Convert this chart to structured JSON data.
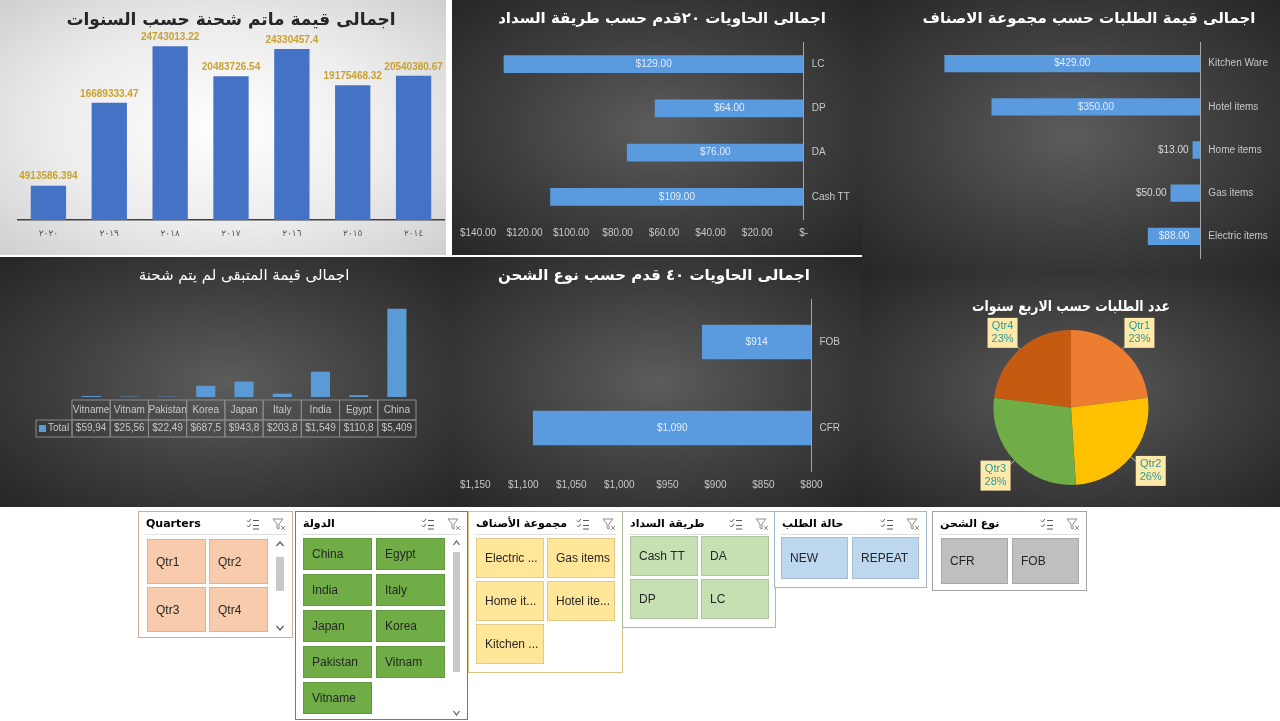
{
  "chart_data": [
    {
      "type": "bar",
      "title": "اجمالى قيمة ماتم شحنة حسب السنوات",
      "categories": [
        "٢٠٢٠",
        "٢٠١٩",
        "٢٠١٨",
        "٢٠١٧",
        "٢٠١٦",
        "٢٠١٥",
        "٢٠١٤"
      ],
      "values": [
        4913586.394,
        16689333.47,
        24743013.22,
        20483726.54,
        24330457.4,
        19175468.32,
        20540380.67
      ],
      "color": "#4472c4",
      "data_labels": true,
      "tick_labels": "x"
    },
    {
      "type": "bar",
      "orientation": "horizontal",
      "title": "اجمالى الحاويات ٢٠قدم حسب طريقة السداد",
      "categories": [
        "LC",
        "DP",
        "DA",
        "Cash TT"
      ],
      "values": [
        129,
        64,
        76,
        109
      ],
      "value_labels": [
        "$129.00",
        "$64.00",
        "$76.00",
        "$109.00"
      ],
      "color": "#5a9be0",
      "xlim": [
        140,
        0
      ],
      "xticks": [
        {
          "value": 140,
          "label": "$140.00"
        },
        {
          "value": 120,
          "label": "$120.00"
        },
        {
          "value": 100,
          "label": "$100.00"
        },
        {
          "value": 80,
          "label": "$80.00"
        },
        {
          "value": 60,
          "label": "$60.00"
        },
        {
          "value": 40,
          "label": "$40.00"
        },
        {
          "value": 20,
          "label": "$20.00"
        },
        {
          "value": 0,
          "label": "$-"
        }
      ]
    },
    {
      "type": "bar",
      "orientation": "horizontal",
      "title": "اجمالى قيمة الطلبات حسب مجموعة الاصناف",
      "categories": [
        "Kitchen Ware",
        "Hotel items",
        "Home items",
        "Gas items",
        "Electric items"
      ],
      "values": [
        429,
        350,
        13,
        50,
        88
      ],
      "value_labels": [
        "$429.00",
        "$350.00",
        "$13.00",
        "$50.00",
        "$88.00"
      ],
      "color": "#5a9be0",
      "tick_labels": "y"
    },
    {
      "type": "bar",
      "title": "اجمالى قيمة المتبقى لم يتم شحنة",
      "categories": [
        "Vitname",
        "Vitnam",
        "Pakistan",
        "Korea",
        "Japan",
        "Italy",
        "India",
        "Egypt",
        "China"
      ],
      "series": [
        {
          "name": "Total",
          "color": "#5b9bd5",
          "values": [
            59.94,
            25.56,
            22.49,
            687.5,
            943.8,
            203.8,
            1549,
            110.8,
            5409
          ],
          "value_labels": [
            "$59,94",
            "$25,56",
            "$22,49",
            "$687,5",
            "$943,8",
            "$203,8",
            "$1,549",
            "$110,8",
            "$5,409"
          ]
        }
      ],
      "tick_labels": "x",
      "legend": "bottom left"
    },
    {
      "type": "bar",
      "orientation": "horizontal",
      "title": "اجمالى الحاويات ٤٠ قدم حسب نوع الشحن",
      "categories": [
        "FOB",
        "CFR"
      ],
      "values": [
        914,
        1090
      ],
      "value_labels": [
        "$914",
        "$1,090"
      ],
      "color": "#5a9be0",
      "xlim": [
        1150,
        800
      ],
      "xticks": [
        {
          "value": 1150,
          "label": "$1,150"
        },
        {
          "value": 1100,
          "label": "$1,100"
        },
        {
          "value": 1050,
          "label": "$1,050"
        },
        {
          "value": 1000,
          "label": "$1,000"
        },
        {
          "value": 950,
          "label": "$950"
        },
        {
          "value": 900,
          "label": "$900"
        },
        {
          "value": 850,
          "label": "$850"
        },
        {
          "value": 800,
          "label": "$800"
        }
      ]
    },
    {
      "type": "pie",
      "title": "عدد الطلبات حسب الاربع سنوات",
      "categories": [
        "Qtr1",
        "Qtr2",
        "Qtr3",
        "Qtr4"
      ],
      "values": [
        23,
        26,
        28,
        23
      ],
      "value_labels": [
        "23%",
        "26%",
        "28%",
        "23%"
      ],
      "colors": [
        "#ed7d31",
        "#ffc000",
        "#70ad47",
        "#c55a11"
      ]
    },
    {
      "type": "other",
      "title": "Quarters",
      "annotations": [
        "Qtr1",
        "Qtr2",
        "Qtr3",
        "Qtr4"
      ],
      "color": "#f8cbad"
    },
    {
      "type": "other",
      "title": "الدولة",
      "annotations": [
        "China",
        "Egypt",
        "India",
        "Italy",
        "Japan",
        "Korea",
        "Pakistan",
        "Vitnam",
        "Vitname"
      ],
      "color": "#70ad47"
    },
    {
      "type": "other",
      "title": "مجموعة الأصناف",
      "annotations": [
        "Electric ...",
        "Gas items",
        "Home it...",
        "Hotel ite...",
        "Kitchen ..."
      ],
      "color": "#ffe699"
    },
    {
      "type": "other",
      "title": "طريقة السداد",
      "annotations": [
        "Cash TT",
        "DA",
        "DP",
        "LC"
      ],
      "color": "#c6e0b4"
    },
    {
      "type": "other",
      "title": "حالة الطلب",
      "annotations": [
        "NEW",
        "REPEAT"
      ],
      "color": "#bdd7ee"
    },
    {
      "type": "other",
      "title": "نوع الشحن",
      "annotations": [
        "CFR",
        "FOB"
      ],
      "color": "#bfbfbf"
    }
  ]
}
